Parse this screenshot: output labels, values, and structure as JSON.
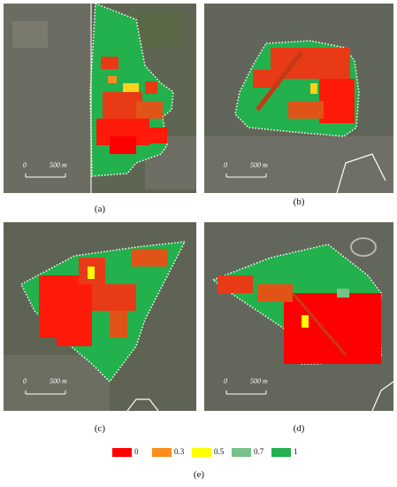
{
  "panels": {
    "a": {
      "label": "(a)",
      "scale": "500 m",
      "zero": "0"
    },
    "b": {
      "label": "(b)",
      "scale": "500 m",
      "zero": "0"
    },
    "c": {
      "label": "(c)",
      "scale": "500 m",
      "zero": "0"
    },
    "d": {
      "label": "(d)",
      "scale": "500 m",
      "zero": "0"
    }
  },
  "legend": {
    "items": [
      {
        "value": "0",
        "color": "#ff0000"
      },
      {
        "value": "0.3",
        "color": "#ff8c1a"
      },
      {
        "value": "0.5",
        "color": "#ffff00"
      },
      {
        "value": "0.7",
        "color": "#78c28a"
      },
      {
        "value": "1",
        "color": "#22b14c"
      }
    ],
    "label": "(e)"
  }
}
